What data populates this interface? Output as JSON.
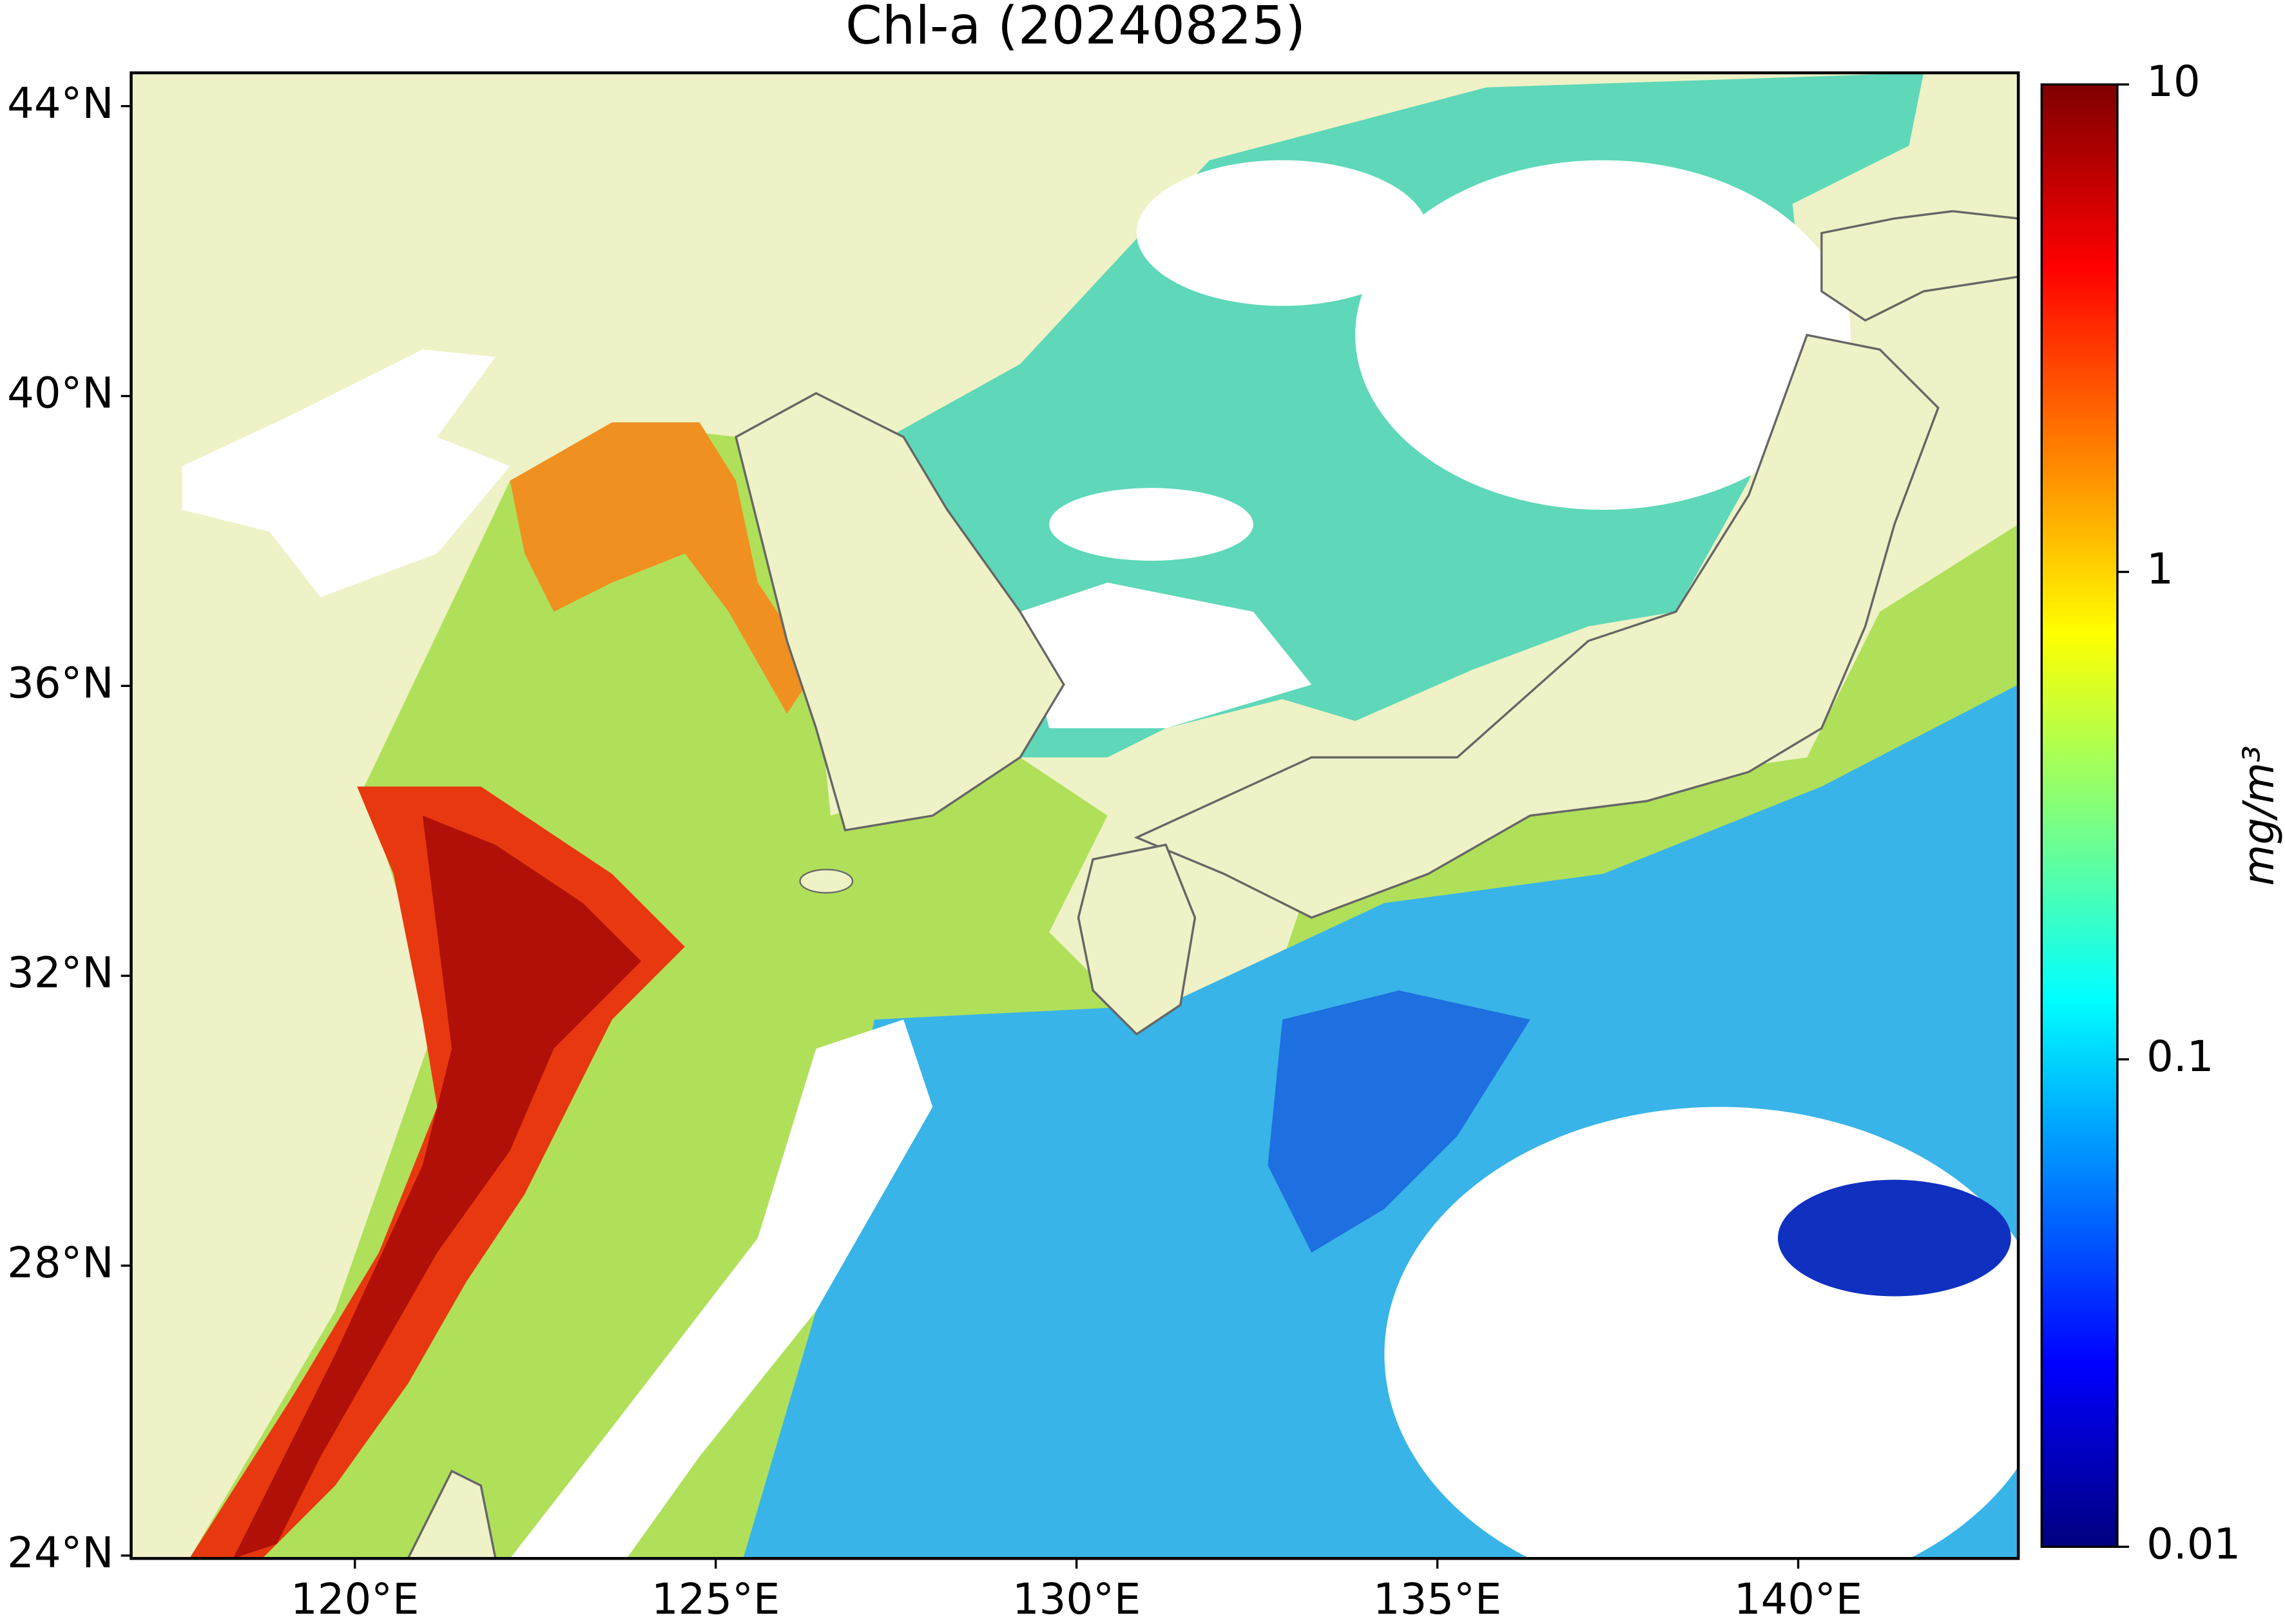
{
  "map": {
    "title": "Chl-a (20240825)",
    "xlim": [
      116.9,
      143.05
    ],
    "ylim": [
      23.96,
      44.46
    ],
    "lon_ticks": [
      {
        "value": 120,
        "label": "120°E"
      },
      {
        "value": 125,
        "label": "125°E"
      },
      {
        "value": 130,
        "label": "130°E"
      },
      {
        "value": 135,
        "label": "135°E"
      },
      {
        "value": 140,
        "label": "140°E"
      }
    ],
    "lat_ticks": [
      {
        "value": 24,
        "label": "24°N"
      },
      {
        "value": 28,
        "label": "28°N"
      },
      {
        "value": 32,
        "label": "32°N"
      },
      {
        "value": 36,
        "label": "36°N"
      },
      {
        "value": 40,
        "label": "40°N"
      },
      {
        "value": 44,
        "label": "44°N"
      }
    ],
    "colorbar": {
      "label": "mg/m³",
      "lim": [
        0.01,
        10
      ],
      "log": true,
      "ticks": [
        0.01,
        0.1,
        1,
        10
      ],
      "colors": [
        "#00007f",
        "#0000ff",
        "#007fff",
        "#00ffff",
        "#7fff7f",
        "#ffff00",
        "#ff7f00",
        "#ff0000",
        "#7f0000"
      ]
    }
  }
}
